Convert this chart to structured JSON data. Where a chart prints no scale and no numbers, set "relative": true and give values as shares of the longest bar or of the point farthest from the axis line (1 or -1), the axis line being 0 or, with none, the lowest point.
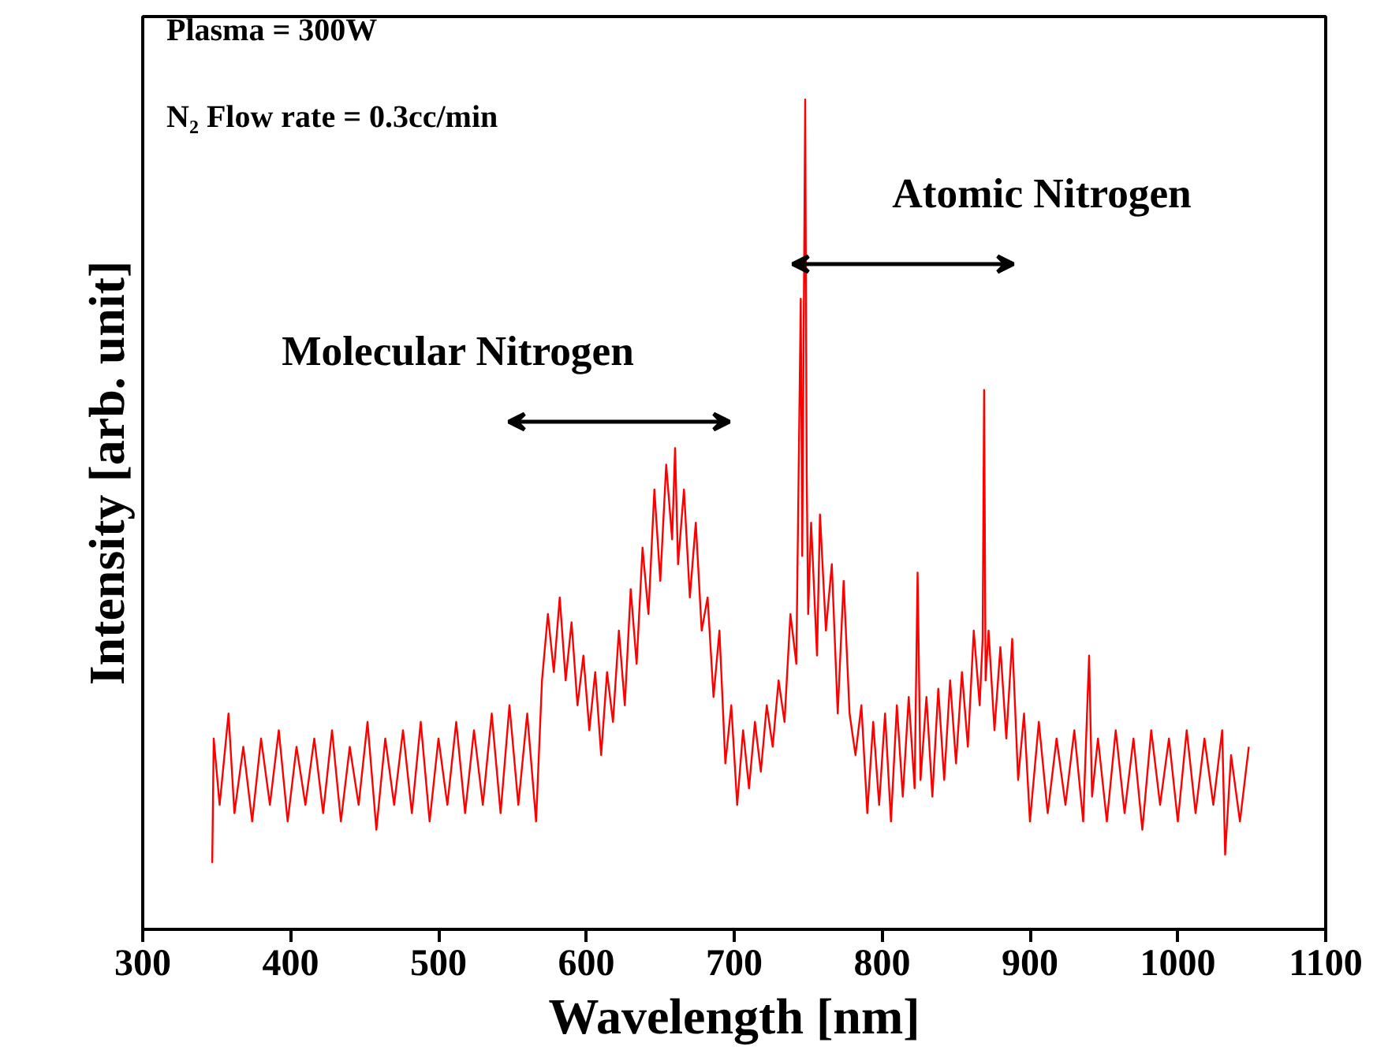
{
  "chart_data": {
    "type": "line",
    "relative": true,
    "xlabel": "Wavelength [nm]",
    "ylabel": "Intensity [arb. unit]",
    "xlim": [
      300,
      1100
    ],
    "xticks": [
      300,
      400,
      500,
      600,
      700,
      800,
      900,
      1000,
      1100
    ],
    "grid": false,
    "marker": "none",
    "line_style": "solid",
    "annotations": [
      "Plasma = 300W",
      "N₂ Flow rate = 0.3cc/min",
      "Molecular Nitrogen",
      "Atomic Nitrogen"
    ],
    "series": [
      {
        "color": "#ff0000",
        "x": [
          347,
          348,
          352,
          358,
          362,
          368,
          374,
          380,
          386,
          392,
          398,
          404,
          410,
          416,
          422,
          428,
          434,
          440,
          446,
          452,
          458,
          464,
          470,
          476,
          482,
          488,
          494,
          500,
          506,
          512,
          518,
          524,
          530,
          536,
          542,
          548,
          554,
          560,
          566,
          570,
          574,
          578,
          582,
          586,
          590,
          594,
          598,
          602,
          606,
          610,
          614,
          618,
          622,
          626,
          630,
          634,
          638,
          642,
          646,
          650,
          654,
          658,
          660,
          662,
          666,
          670,
          674,
          678,
          682,
          686,
          690,
          694,
          698,
          702,
          706,
          710,
          714,
          718,
          722,
          726,
          730,
          734,
          738,
          742,
          745,
          746,
          748,
          749,
          750,
          752,
          756,
          758,
          762,
          766,
          770,
          774,
          778,
          782,
          786,
          790,
          794,
          798,
          802,
          806,
          810,
          814,
          818,
          822,
          824,
          826,
          830,
          834,
          838,
          842,
          846,
          850,
          854,
          858,
          862,
          866,
          868,
          869,
          870,
          872,
          876,
          880,
          884,
          888,
          892,
          896,
          900,
          906,
          912,
          918,
          924,
          930,
          936,
          940,
          942,
          946,
          952,
          958,
          964,
          970,
          976,
          982,
          988,
          994,
          1000,
          1006,
          1012,
          1018,
          1024,
          1030,
          1032,
          1036,
          1042,
          1048
        ],
        "values": [
          0.08,
          0.23,
          0.15,
          0.26,
          0.14,
          0.22,
          0.13,
          0.23,
          0.15,
          0.24,
          0.13,
          0.22,
          0.15,
          0.23,
          0.14,
          0.24,
          0.13,
          0.22,
          0.15,
          0.25,
          0.12,
          0.23,
          0.15,
          0.24,
          0.14,
          0.25,
          0.13,
          0.23,
          0.15,
          0.25,
          0.14,
          0.24,
          0.15,
          0.26,
          0.14,
          0.27,
          0.15,
          0.26,
          0.13,
          0.3,
          0.38,
          0.31,
          0.4,
          0.3,
          0.37,
          0.27,
          0.33,
          0.24,
          0.31,
          0.21,
          0.31,
          0.25,
          0.36,
          0.27,
          0.41,
          0.32,
          0.46,
          0.38,
          0.53,
          0.42,
          0.56,
          0.47,
          0.58,
          0.44,
          0.53,
          0.4,
          0.49,
          0.36,
          0.4,
          0.28,
          0.36,
          0.2,
          0.27,
          0.15,
          0.24,
          0.17,
          0.25,
          0.19,
          0.27,
          0.22,
          0.3,
          0.25,
          0.38,
          0.32,
          0.76,
          0.45,
          1.0,
          0.55,
          0.38,
          0.49,
          0.33,
          0.5,
          0.36,
          0.44,
          0.26,
          0.42,
          0.26,
          0.21,
          0.27,
          0.14,
          0.25,
          0.15,
          0.26,
          0.13,
          0.27,
          0.16,
          0.28,
          0.17,
          0.43,
          0.18,
          0.28,
          0.16,
          0.29,
          0.18,
          0.3,
          0.2,
          0.31,
          0.22,
          0.36,
          0.27,
          0.35,
          0.65,
          0.3,
          0.36,
          0.24,
          0.34,
          0.23,
          0.35,
          0.18,
          0.26,
          0.13,
          0.25,
          0.14,
          0.23,
          0.15,
          0.24,
          0.13,
          0.33,
          0.16,
          0.23,
          0.13,
          0.24,
          0.14,
          0.23,
          0.12,
          0.24,
          0.15,
          0.23,
          0.13,
          0.24,
          0.14,
          0.23,
          0.15,
          0.24,
          0.09,
          0.21,
          0.13,
          0.22
        ]
      }
    ]
  }
}
